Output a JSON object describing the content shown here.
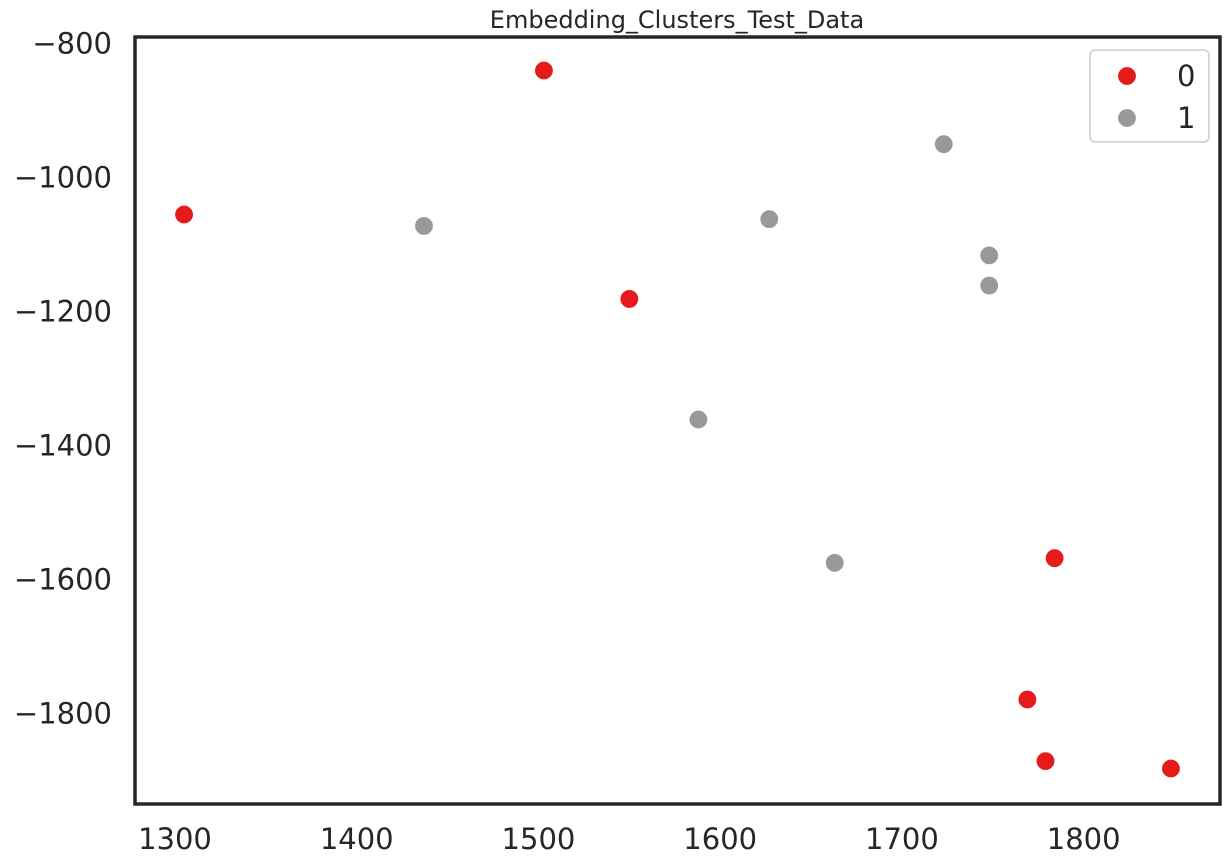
{
  "chart_data": {
    "type": "scatter",
    "title": "Embedding_Clusters_Test_Data",
    "xlabel": "",
    "ylabel": "",
    "xlim": [
      1278,
      1875
    ],
    "ylim": [
      -1935,
      -790
    ],
    "x_ticks": [
      1300,
      1400,
      1500,
      1600,
      1700,
      1800
    ],
    "x_tick_labels": [
      "1300",
      "1400",
      "1500",
      "1600",
      "1700",
      "1800"
    ],
    "y_ticks": [
      -800,
      -1000,
      -1200,
      -1400,
      -1600,
      -1800
    ],
    "y_tick_labels": [
      "−800",
      "−1000",
      "−1200",
      "−1400",
      "−1600",
      "−1800"
    ],
    "grid": false,
    "legend": {
      "placement": "top-right",
      "entries": [
        "0",
        "1"
      ]
    },
    "series": [
      {
        "name": "0",
        "color": "#e41a1c",
        "points": [
          {
            "x": 1305,
            "y": -1055
          },
          {
            "x": 1503,
            "y": -840
          },
          {
            "x": 1550,
            "y": -1181
          },
          {
            "x": 1784,
            "y": -1568
          },
          {
            "x": 1769,
            "y": -1779
          },
          {
            "x": 1779,
            "y": -1871
          },
          {
            "x": 1848,
            "y": -1882
          }
        ]
      },
      {
        "name": "1",
        "color": "#999999",
        "points": [
          {
            "x": 1437,
            "y": -1072
          },
          {
            "x": 1723,
            "y": -950
          },
          {
            "x": 1627,
            "y": -1062
          },
          {
            "x": 1748,
            "y": -1116
          },
          {
            "x": 1748,
            "y": -1161
          },
          {
            "x": 1588,
            "y": -1361
          },
          {
            "x": 1663,
            "y": -1575
          }
        ]
      }
    ]
  },
  "style": {
    "axis_color": "#262626",
    "text_color": "#262626",
    "legend_border": "#cccccc"
  }
}
